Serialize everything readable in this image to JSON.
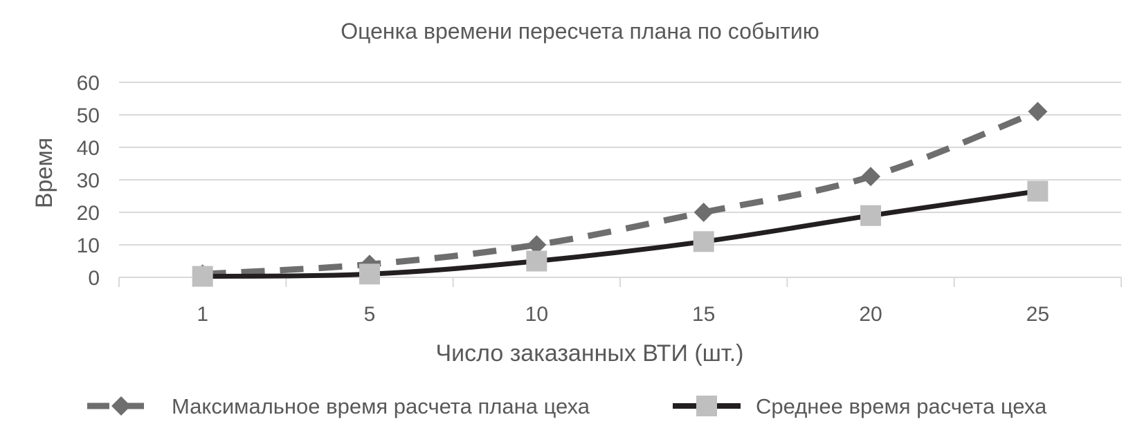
{
  "chart_data": {
    "type": "line",
    "title": "Оценка времени пересчета плана по событию",
    "xlabel": "Число заказанных ВТИ (шт.)",
    "ylabel": "Время",
    "categories": [
      "1",
      "5",
      "10",
      "15",
      "20",
      "25"
    ],
    "ylim": [
      0,
      60
    ],
    "yticks": [
      0,
      10,
      20,
      30,
      40,
      50,
      60
    ],
    "grid": true,
    "legend_position": "bottom",
    "series": [
      {
        "name": "Максимальное время расчета плана цеха",
        "values": [
          1,
          4,
          10,
          20,
          31,
          51
        ],
        "color": "#6e6e6e",
        "line_style": "dashed",
        "marker": "diamond"
      },
      {
        "name": "Среднее время расчета цеха",
        "values": [
          0.3,
          1,
          5,
          11,
          19,
          26.5
        ],
        "color": "#231f20",
        "line_style": "solid",
        "marker": "square",
        "marker_color": "#bfbfbf"
      }
    ]
  }
}
